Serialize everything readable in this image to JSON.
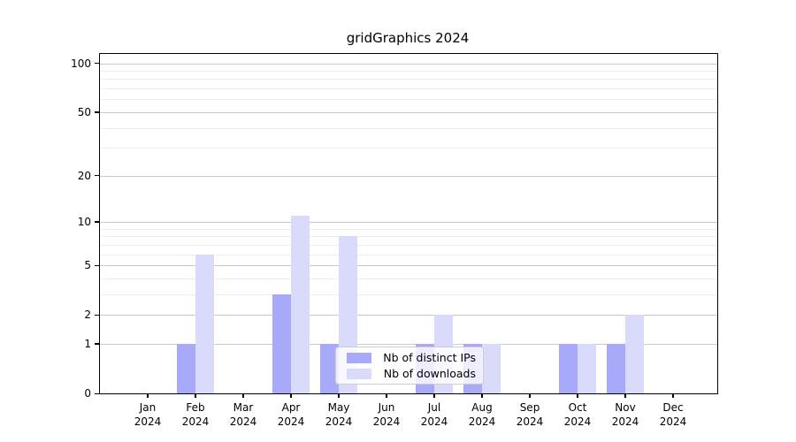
{
  "chart_data": {
    "type": "bar",
    "title": "gridGraphics 2024",
    "categories": [
      "Jan 2024",
      "Feb 2024",
      "Mar 2024",
      "Apr 2024",
      "May 2024",
      "Jun 2024",
      "Jul 2024",
      "Aug 2024",
      "Sep 2024",
      "Oct 2024",
      "Nov 2024",
      "Dec 2024"
    ],
    "series": [
      {
        "name": "Nb of distinct IPs",
        "color": "#a9a9fa",
        "values": [
          0,
          1,
          0,
          3,
          1,
          0,
          1,
          1,
          0,
          1,
          1,
          0
        ]
      },
      {
        "name": "Nb of downloads",
        "color": "#dadafa",
        "values": [
          0,
          6,
          0,
          11,
          8,
          0,
          2,
          1,
          0,
          1,
          2,
          0
        ]
      }
    ],
    "xlabel": "",
    "ylabel": "",
    "y_axis": {
      "scale": "log1p",
      "ticks": [
        0,
        1,
        2,
        5,
        10,
        20,
        50,
        100
      ],
      "minor_gridlines": [
        3,
        4,
        6,
        7,
        8,
        9,
        30,
        40,
        60,
        70,
        80,
        90
      ],
      "ylim": [
        0,
        114
      ]
    },
    "grid": true,
    "legend_position": "lower center inside plot"
  }
}
